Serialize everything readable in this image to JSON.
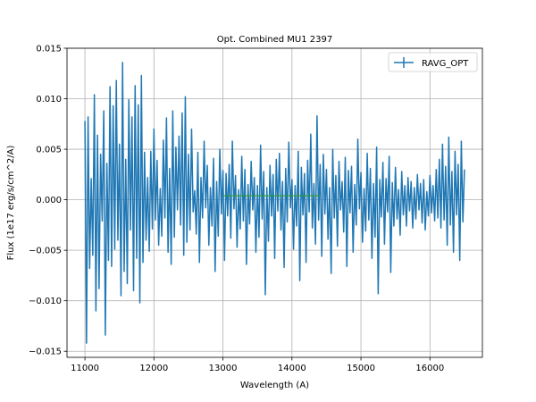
{
  "chart_data": {
    "type": "line",
    "title": "Opt. Combined MU1 2397",
    "xlabel": "Wavelength (A)",
    "ylabel": "Flux (1e17 erg/s/cm^2/A)",
    "xlim": [
      10740,
      16760
    ],
    "ylim": [
      -0.0156,
      0.015
    ],
    "xticks": [
      11000,
      12000,
      13000,
      14000,
      15000,
      16000
    ],
    "xtick_labels": [
      "11000",
      "12000",
      "13000",
      "14000",
      "15000",
      "16000"
    ],
    "yticks": [
      -0.015,
      -0.01,
      -0.005,
      0.0,
      0.005,
      0.01,
      0.015
    ],
    "ytick_labels": [
      "−0.015",
      "−0.010",
      "−0.005",
      "0.000",
      "0.005",
      "0.010",
      "0.015"
    ],
    "grid": true,
    "legend": {
      "position": "top-right",
      "entries": [
        "RAVG_OPT"
      ]
    },
    "series": [
      {
        "name": "RAVG_OPT",
        "color": "#1f77b4",
        "x_start": 11000,
        "x_end": 16500,
        "values": [
          0.0078,
          -0.0142,
          0.0082,
          -0.0068,
          0.0021,
          -0.0055,
          0.0104,
          -0.011,
          0.0064,
          -0.0088,
          0.0045,
          -0.0021,
          0.0088,
          -0.0134,
          0.0036,
          -0.006,
          0.0112,
          -0.0066,
          0.0093,
          -0.0049,
          0.0118,
          -0.004,
          0.0055,
          -0.0095,
          0.0136,
          -0.0071,
          0.004,
          -0.0083,
          0.0099,
          -0.003,
          0.0082,
          -0.009,
          0.0113,
          -0.0058,
          0.0094,
          -0.0102,
          0.0123,
          -0.0062,
          0.0047,
          -0.004,
          0.0022,
          -0.0051,
          0.0048,
          -0.0029,
          0.007,
          -0.002,
          0.0039,
          -0.0045,
          0.0011,
          -0.0036,
          0.0059,
          -0.0018,
          0.0081,
          -0.0052,
          0.0031,
          -0.0064,
          0.0088,
          -0.0037,
          0.0052,
          -0.001,
          0.0063,
          -0.0025,
          0.0086,
          -0.0055,
          0.0102,
          -0.0042,
          0.0045,
          -0.003,
          0.007,
          -0.0012,
          0.0009,
          -0.0034,
          0.0047,
          -0.0062,
          0.0022,
          -0.0018,
          0.0058,
          -0.0008,
          0.0034,
          -0.0045,
          0.0012,
          -0.0026,
          0.0041,
          -0.0071,
          0.0018,
          -0.0036,
          0.005,
          -0.0014,
          0.0029,
          -0.006,
          0.0026,
          -0.0016,
          0.0035,
          -0.0038,
          0.0058,
          -0.0009,
          0.0024,
          -0.0047,
          0.001,
          -0.0029,
          0.0043,
          -0.0021,
          0.003,
          -0.0064,
          0.0015,
          -0.0024,
          0.0038,
          -0.001,
          0.0022,
          -0.0052,
          0.0014,
          -0.0037,
          0.0054,
          -0.0019,
          0.0028,
          -0.0094,
          0.0012,
          -0.0041,
          0.0034,
          -0.0016,
          0.0025,
          -0.0058,
          0.004,
          -0.0011,
          0.0046,
          -0.003,
          0.0018,
          -0.0067,
          0.0031,
          -0.0022,
          0.0057,
          -0.0008,
          0.002,
          -0.0049,
          0.0014,
          -0.0026,
          0.0048,
          -0.008,
          0.0032,
          -0.0015,
          0.0026,
          -0.0062,
          0.0039,
          -0.0012,
          0.0065,
          -0.0028,
          0.0016,
          -0.0044,
          0.0083,
          -0.002,
          0.0035,
          -0.0056,
          0.0045,
          -0.0014,
          0.003,
          -0.0039,
          0.0012,
          -0.0073,
          0.005,
          -0.0018,
          0.0024,
          -0.0046,
          0.0038,
          -0.001,
          0.0018,
          -0.0032,
          0.0042,
          -0.0066,
          0.0029,
          -0.0013,
          0.0033,
          -0.0052,
          0.0015,
          -0.0025,
          0.006,
          -0.0009,
          0.0027,
          -0.0042,
          0.0011,
          -0.0031,
          0.0046,
          -0.002,
          0.0031,
          -0.0058,
          0.0016,
          -0.0037,
          0.0052,
          -0.0093,
          0.002,
          -0.0017,
          0.0037,
          -0.0044,
          0.0021,
          -0.0012,
          0.0043,
          -0.0072,
          0.0017,
          -0.0026,
          0.0032,
          -0.0019,
          0.001,
          -0.0035,
          0.0028,
          -0.0015,
          0.0014,
          -0.0026,
          0.0022,
          -0.0011,
          0.0018,
          -0.0028,
          0.0012,
          -0.0019,
          0.0025,
          -0.001,
          0.0016,
          -0.0023,
          0.002,
          -0.003,
          0.0008,
          -0.0016,
          0.0024,
          -0.0013,
          0.0014,
          -0.0021,
          0.003,
          -0.0018,
          0.004,
          -0.0028,
          0.0055,
          -0.002,
          0.0033,
          -0.0045,
          0.0062,
          -0.0025,
          0.0028,
          -0.0052,
          0.0048,
          -0.0015,
          0.0035,
          -0.006,
          0.0058,
          -0.0022,
          0.003
        ]
      },
      {
        "name": "",
        "color": "#2ca02c",
        "x": [
          13000,
          14400
        ],
        "y": [
          0.0004,
          0.0004
        ]
      }
    ]
  }
}
